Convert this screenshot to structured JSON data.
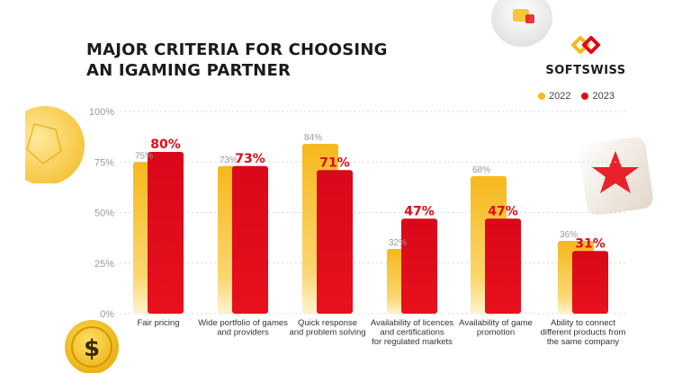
{
  "title_lines": [
    "MAJOR CRITERIA FOR CHOOSING",
    "AN IGAMING PARTNER"
  ],
  "brand": {
    "name": "SOFTSWISS",
    "color": "#e30613"
  },
  "chart_data": {
    "type": "bar",
    "title": "MAJOR CRITERIA FOR CHOOSING AN IGAMING PARTNER",
    "categories": [
      [
        "Fair pricing"
      ],
      [
        "Wide portfolio of games",
        "and providers"
      ],
      [
        "Quick response",
        "and problem solving"
      ],
      [
        "Availability of licences",
        "and certifications",
        "for regulated markets"
      ],
      [
        "Availability of game",
        "promotion"
      ],
      [
        "Ability to connect",
        "different products from",
        "the same company"
      ]
    ],
    "series": [
      {
        "name": "2022",
        "color": "#f6b81c",
        "values": [
          75,
          73,
          84,
          32,
          68,
          36
        ],
        "labels": [
          "75%",
          "73%",
          "84%",
          "32%",
          "68%",
          "36%"
        ]
      },
      {
        "name": "2023",
        "color": "#e10a17",
        "values": [
          80,
          73,
          71,
          47,
          47,
          31
        ],
        "labels": [
          "80%",
          "73%",
          "71%",
          "47%",
          "47%",
          "31%"
        ]
      }
    ],
    "yticks": [
      "0%",
      "25%",
      "50%",
      "75%",
      "100%"
    ],
    "ytick_values": [
      0,
      25,
      50,
      75,
      100
    ],
    "ylim": [
      0,
      100
    ],
    "legend_position": "top-right",
    "grid": true
  }
}
